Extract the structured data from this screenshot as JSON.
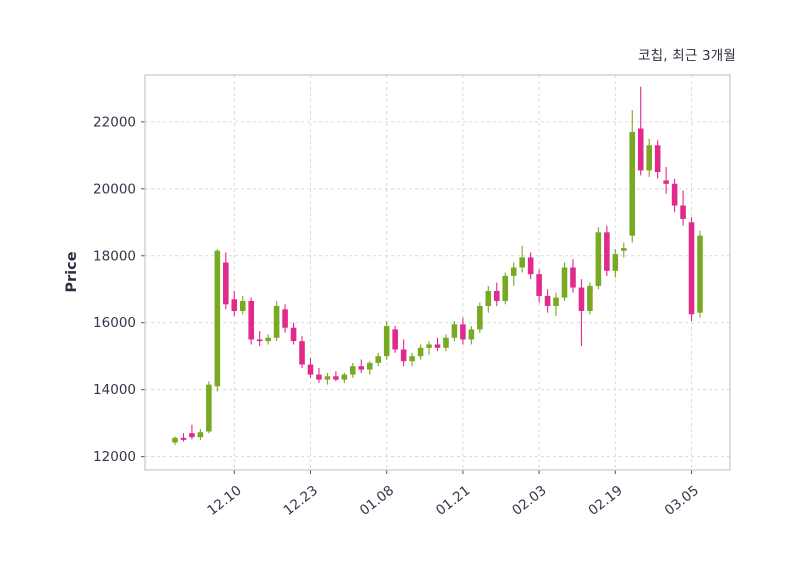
{
  "header": {
    "title": "코칩, 최근 3개월"
  },
  "chart_data": {
    "type": "candlestick",
    "title": "코칩, 최근 3개월",
    "ylabel": "Price",
    "ylim": [
      11600,
      23400
    ],
    "yticks": [
      12000,
      14000,
      16000,
      18000,
      20000,
      22000
    ],
    "xticks": [
      {
        "index": 7,
        "label": "12.10"
      },
      {
        "index": 16,
        "label": "12.23"
      },
      {
        "index": 25,
        "label": "01.08"
      },
      {
        "index": 34,
        "label": "01.21"
      },
      {
        "index": 43,
        "label": "02.03"
      },
      {
        "index": 52,
        "label": "02.19"
      },
      {
        "index": 61,
        "label": "03.05"
      }
    ],
    "grid": true,
    "legend_position": "none",
    "colors": {
      "up": "#79a823",
      "down": "#e12a8c",
      "grid": "#dadada",
      "frame": "#c8c8c8",
      "text": "#36364a"
    },
    "candles_ohlc": [
      [
        12420,
        12600,
        12350,
        12560
      ],
      [
        12560,
        12700,
        12450,
        12500
      ],
      [
        12700,
        12950,
        12520,
        12580
      ],
      [
        12580,
        12820,
        12500,
        12730
      ],
      [
        12750,
        14250,
        12700,
        14150
      ],
      [
        14100,
        18200,
        13950,
        18150
      ],
      [
        17800,
        18100,
        16400,
        16550
      ],
      [
        16700,
        16950,
        16200,
        16350
      ],
      [
        16350,
        16800,
        16250,
        16650
      ],
      [
        16650,
        16750,
        15350,
        15500
      ],
      [
        15500,
        15750,
        15300,
        15450
      ],
      [
        15450,
        15650,
        15350,
        15550
      ],
      [
        15550,
        16650,
        15450,
        16500
      ],
      [
        16400,
        16550,
        15700,
        15850
      ],
      [
        15850,
        16000,
        15350,
        15450
      ],
      [
        15450,
        15600,
        14650,
        14750
      ],
      [
        14750,
        14950,
        14350,
        14450
      ],
      [
        14450,
        14650,
        14200,
        14300
      ],
      [
        14300,
        14500,
        14150,
        14400
      ],
      [
        14400,
        14550,
        14250,
        14300
      ],
      [
        14300,
        14500,
        14200,
        14450
      ],
      [
        14450,
        14800,
        14350,
        14700
      ],
      [
        14700,
        14900,
        14500,
        14600
      ],
      [
        14600,
        14850,
        14450,
        14800
      ],
      [
        14800,
        15100,
        14700,
        15000
      ],
      [
        15000,
        16050,
        14900,
        15900
      ],
      [
        15800,
        15900,
        15100,
        15200
      ],
      [
        15200,
        15500,
        14700,
        14850
      ],
      [
        14850,
        15100,
        14700,
        15000
      ],
      [
        15000,
        15350,
        14900,
        15250
      ],
      [
        15250,
        15450,
        15050,
        15350
      ],
      [
        15350,
        15550,
        15150,
        15250
      ],
      [
        15250,
        15650,
        15150,
        15550
      ],
      [
        15550,
        16050,
        15450,
        15950
      ],
      [
        15950,
        16150,
        15350,
        15500
      ],
      [
        15500,
        15900,
        15350,
        15800
      ],
      [
        15800,
        16600,
        15700,
        16500
      ],
      [
        16500,
        17100,
        16300,
        16950
      ],
      [
        16950,
        17200,
        16500,
        16650
      ],
      [
        16650,
        17500,
        16550,
        17400
      ],
      [
        17400,
        17800,
        17100,
        17650
      ],
      [
        17650,
        18300,
        17500,
        17950
      ],
      [
        17950,
        18100,
        17300,
        17450
      ],
      [
        17450,
        17600,
        16600,
        16800
      ],
      [
        16800,
        17000,
        16300,
        16500
      ],
      [
        16500,
        16900,
        16200,
        16750
      ],
      [
        16750,
        17800,
        16650,
        17650
      ],
      [
        17650,
        17900,
        16900,
        17050
      ],
      [
        17050,
        17300,
        15300,
        16350
      ],
      [
        16350,
        17200,
        16250,
        17100
      ],
      [
        17100,
        18850,
        17000,
        18700
      ],
      [
        18700,
        18900,
        17400,
        17550
      ],
      [
        17550,
        18200,
        17350,
        18050
      ],
      [
        18150,
        18400,
        17950,
        18230
      ],
      [
        18600,
        22350,
        18400,
        21700
      ],
      [
        21800,
        23050,
        20400,
        20550
      ],
      [
        20550,
        21500,
        20350,
        21300
      ],
      [
        21300,
        21450,
        20300,
        20500
      ],
      [
        20250,
        20650,
        19850,
        20150
      ],
      [
        20150,
        20300,
        19300,
        19500
      ],
      [
        19500,
        19950,
        18900,
        19100
      ],
      [
        19000,
        19150,
        16050,
        16250
      ],
      [
        16300,
        18750,
        16150,
        18600
      ]
    ]
  }
}
